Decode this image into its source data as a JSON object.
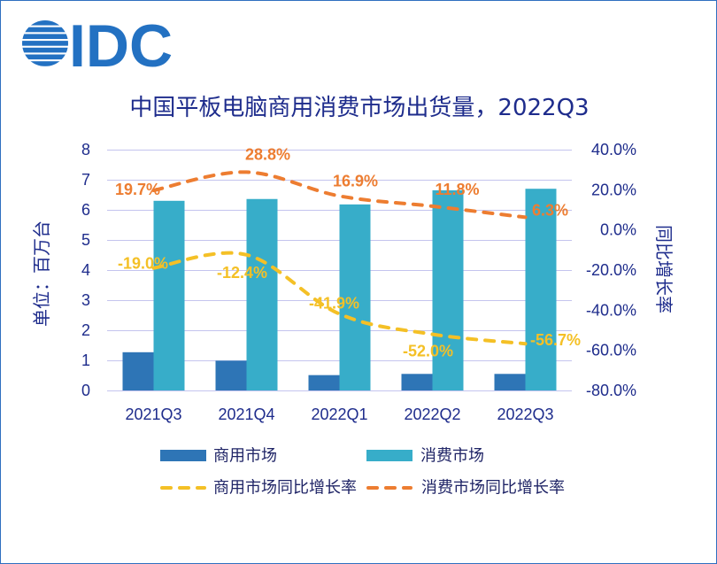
{
  "logo": {
    "text": "IDC",
    "color": "#2371C2"
  },
  "chart_data": {
    "type": "bar",
    "title": "中国平板电脑商用消费市场出货量，2022Q3",
    "ylabel": "单位：百万台",
    "y2label": "同比增长率",
    "categories": [
      "2021Q3",
      "2021Q4",
      "2022Q1",
      "2022Q2",
      "2022Q3"
    ],
    "ylim": [
      0,
      8
    ],
    "yticks": [
      0,
      1,
      2,
      3,
      4,
      5,
      6,
      7,
      8
    ],
    "y2lim": [
      -80,
      40
    ],
    "y2ticks": [
      {
        "value": 40,
        "label": "40.0%"
      },
      {
        "value": 20,
        "label": "20.0%"
      },
      {
        "value": 0,
        "label": "0.0%"
      },
      {
        "value": -20,
        "label": "-20.0%"
      },
      {
        "value": -40,
        "label": "-40.0%"
      },
      {
        "value": -60,
        "label": "-60.0%"
      },
      {
        "value": -80,
        "label": "-80.0%"
      }
    ],
    "grid": true,
    "legend": "bottom",
    "series": [
      {
        "name": "商用市场",
        "type": "bar",
        "color": "#2E75B6",
        "values": [
          1.27,
          0.99,
          0.51,
          0.55,
          0.55
        ]
      },
      {
        "name": "消费市场",
        "type": "bar",
        "color": "#37ADC9",
        "values": [
          6.3,
          6.36,
          6.18,
          6.65,
          6.7
        ]
      },
      {
        "name": "商用市场同比增长率",
        "type": "line",
        "color": "#F4C026",
        "values": [
          -19.0,
          -12.4,
          -41.9,
          -52.0,
          -56.7
        ],
        "labels": [
          "-19.0%",
          "-12.4%",
          "-41.9%",
          "-52.0%",
          "-56.7%"
        ]
      },
      {
        "name": "消费市场同比增长率",
        "type": "line",
        "color": "#ED7D31",
        "values": [
          19.7,
          28.8,
          16.9,
          11.8,
          6.3
        ],
        "labels": [
          "19.7%",
          "28.8%",
          "16.9%",
          "11.8%",
          "6.3%"
        ]
      }
    ]
  }
}
